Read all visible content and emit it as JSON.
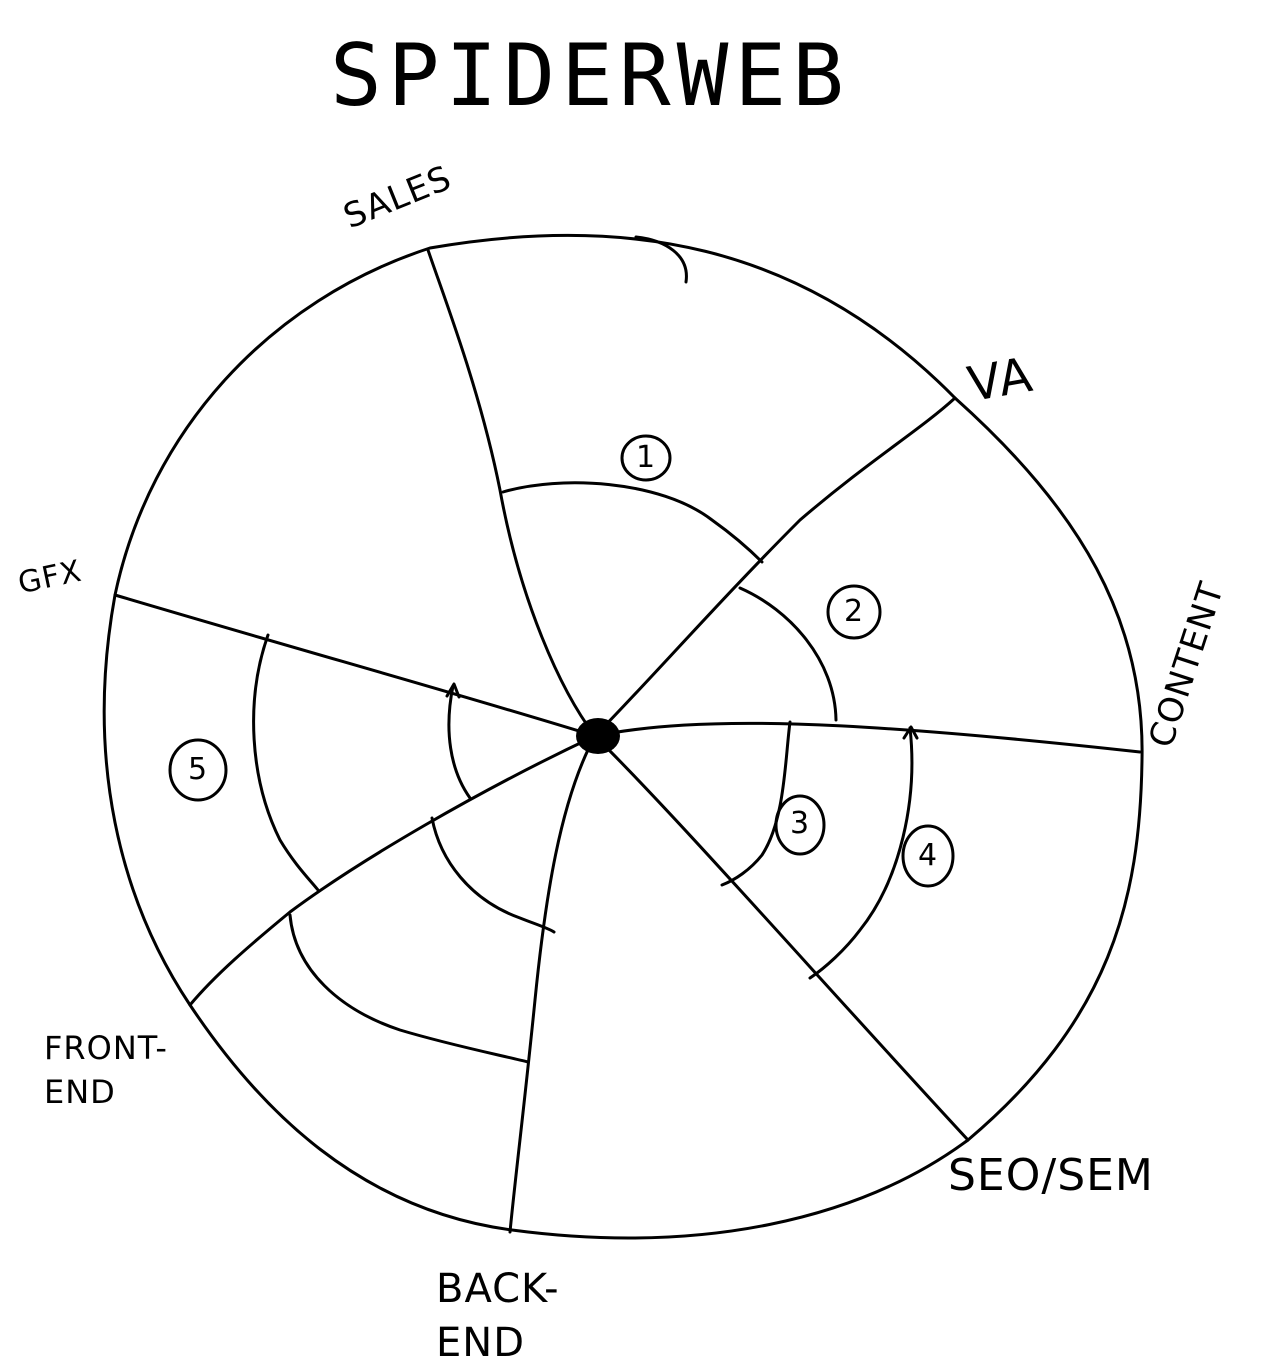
{
  "title": "SPIDERWEB",
  "spokes": [
    {
      "id": "sales",
      "label": "SALES"
    },
    {
      "id": "va",
      "label": "VA"
    },
    {
      "id": "content",
      "label": "CONTENT"
    },
    {
      "id": "seo",
      "label": "SEO/SEM"
    },
    {
      "id": "backend",
      "label": "BACK- END"
    },
    {
      "id": "frontend",
      "label": "FRONT- END"
    },
    {
      "id": "gfx",
      "label": "GFX"
    }
  ],
  "markers": [
    "1",
    "2",
    "3",
    "4",
    "5"
  ]
}
